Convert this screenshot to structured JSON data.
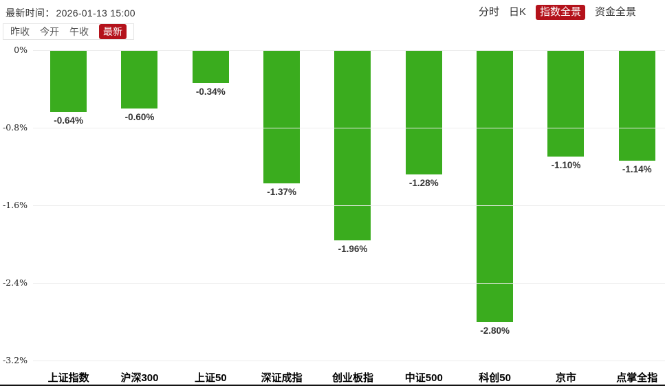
{
  "header": {
    "time_label": "最新时间：",
    "time_value": "2026-01-13 15:00",
    "nav": [
      {
        "label": "分时",
        "active": false
      },
      {
        "label": "日K",
        "active": false
      },
      {
        "label": "指数全景",
        "active": true
      },
      {
        "label": "资金全景",
        "active": false
      }
    ]
  },
  "toolbar": {
    "tabs": [
      {
        "label": "昨收",
        "active": false
      },
      {
        "label": "今开",
        "active": false
      },
      {
        "label": "午收",
        "active": false
      },
      {
        "label": "最新",
        "active": true
      }
    ]
  },
  "colors": {
    "bar_green": "#3aac1e",
    "active_red": "#b4121b",
    "gridline": "#ececec",
    "bottom_line": "#141414"
  },
  "chart_data": {
    "type": "bar",
    "title": "",
    "categories": [
      "上证指数",
      "沪深300",
      "上证50",
      "深证成指",
      "创业板指",
      "中证500",
      "科创50",
      "京市",
      "点掌全指"
    ],
    "values": [
      -0.64,
      -0.6,
      -0.34,
      -1.37,
      -1.96,
      -1.28,
      -2.8,
      -1.1,
      -1.14
    ],
    "value_labels": [
      "-0.64%",
      "-0.60%",
      "-0.34%",
      "-1.37%",
      "-1.96%",
      "-1.28%",
      "-2.80%",
      "-1.10%",
      "-1.14%"
    ],
    "y_tick_labels": [
      "0%",
      "-0.8%",
      "-1.6%",
      "-2.4%",
      "-3.2%"
    ],
    "y_tick_values": [
      0,
      -0.8,
      -1.6,
      -2.4,
      -3.2
    ],
    "ylim": [
      -3.2,
      0
    ],
    "grid": true,
    "bar_color": "#3aac1e",
    "xlabel": "",
    "ylabel": ""
  }
}
